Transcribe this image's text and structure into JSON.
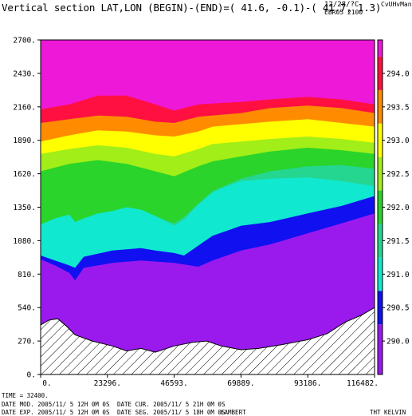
{
  "header": {
    "title": "Vertical section LAT,LON (BEGIN)-(END)=( 41.6, -0.1)-( 41.7, 1.3)",
    "date": "12/28/?C",
    "code": "EBR05 2100",
    "tag": "CvUHvMan"
  },
  "footer": {
    "time_label": "TIME = 32400.",
    "line1_a": "DATE MOD. 2005/11/ 5 12H 0M 0S",
    "line1_b": "DATE CUR. 2005/11/ 5 21H 0M 0S",
    "line2_a": "DATE EXP. 2005/11/ 5 12H 0M 0S",
    "line2_b": "DATE SEG. 2005/11/ 5 18H 0M 0S",
    "projection": "LAMBERT",
    "field": "THT KELVIN"
  },
  "chart_data": {
    "type": "contour",
    "field": "THT",
    "units": "KELVIN",
    "x_ticks": [
      "0.",
      "23296.",
      "46593.",
      "69889.",
      "93186.",
      "116482."
    ],
    "x_tick_values": [
      0,
      23296,
      46593,
      69889,
      93186,
      116482
    ],
    "y_ticks": [
      "0.",
      "270.",
      "540.",
      "810.",
      "1080.",
      "1350.",
      "1620.",
      "1890.",
      "2160.",
      "2430.",
      "2700."
    ],
    "y_tick_values": [
      0,
      270,
      540,
      810,
      1080,
      1350,
      1620,
      1890,
      2160,
      2430,
      2700
    ],
    "xlim": [
      0,
      116482
    ],
    "ylim": [
      0,
      2700
    ],
    "colorbar": {
      "ticks": [
        "290.0",
        "290.5",
        "291.0",
        "291.5",
        "292.0",
        "292.5",
        "293.0",
        "293.5",
        "294.0"
      ],
      "levels": [
        {
          "from": 289.5,
          "to": 290.25,
          "color": "#9a1aee"
        },
        {
          "from": 290.25,
          "to": 290.75,
          "color": "#1010f0"
        },
        {
          "from": 290.75,
          "to": 291.25,
          "color": "#10e8d0"
        },
        {
          "from": 291.25,
          "to": 291.75,
          "color": "#25d690"
        },
        {
          "from": 291.75,
          "to": 292.25,
          "color": "#2ad42a"
        },
        {
          "from": 292.25,
          "to": 292.75,
          "color": "#a2ee18"
        },
        {
          "from": 292.75,
          "to": 293.25,
          "color": "#ffff00"
        },
        {
          "from": 293.25,
          "to": 293.75,
          "color": "#ff8c00"
        },
        {
          "from": 293.75,
          "to": 294.25,
          "color": "#ff1040"
        },
        {
          "from": 294.25,
          "to": 294.5,
          "color": "#ee18d8"
        }
      ]
    },
    "bands_bottom_up": [
      {
        "color": "#9a1aee",
        "top": [
          [
            0,
            930
          ],
          [
            5000,
            880
          ],
          [
            10000,
            820
          ],
          [
            12000,
            760
          ],
          [
            15000,
            860
          ],
          [
            25000,
            900
          ],
          [
            35000,
            920
          ],
          [
            46593,
            900
          ],
          [
            55000,
            870
          ],
          [
            60000,
            920
          ],
          [
            69889,
            1000
          ],
          [
            80000,
            1050
          ],
          [
            93186,
            1140
          ],
          [
            105000,
            1220
          ],
          [
            116482,
            1300
          ]
        ]
      },
      {
        "color": "#1010f0",
        "top": [
          [
            0,
            960
          ],
          [
            5000,
            920
          ],
          [
            10000,
            880
          ],
          [
            12000,
            860
          ],
          [
            15000,
            950
          ],
          [
            25000,
            1000
          ],
          [
            35000,
            1020
          ],
          [
            40000,
            1000
          ],
          [
            46593,
            980
          ],
          [
            50000,
            960
          ],
          [
            55000,
            1040
          ],
          [
            60000,
            1120
          ],
          [
            65000,
            1160
          ],
          [
            69889,
            1200
          ],
          [
            80000,
            1230
          ],
          [
            93186,
            1300
          ],
          [
            105000,
            1360
          ],
          [
            116482,
            1440
          ]
        ]
      },
      {
        "color": "#10e8d0",
        "top": [
          [
            0,
            1210
          ],
          [
            5000,
            1260
          ],
          [
            10000,
            1290
          ],
          [
            12000,
            1230
          ],
          [
            15000,
            1260
          ],
          [
            20000,
            1300
          ],
          [
            25000,
            1320
          ],
          [
            30000,
            1350
          ],
          [
            35000,
            1330
          ],
          [
            40000,
            1280
          ],
          [
            46593,
            1200
          ],
          [
            50000,
            1250
          ],
          [
            55000,
            1370
          ],
          [
            60000,
            1470
          ],
          [
            65000,
            1520
          ],
          [
            69889,
            1560
          ],
          [
            80000,
            1580
          ],
          [
            93186,
            1590
          ],
          [
            105000,
            1560
          ],
          [
            116482,
            1520
          ]
        ]
      },
      {
        "color": "#25d690",
        "top": [
          [
            0,
            1200
          ],
          [
            10000,
            1280
          ],
          [
            12000,
            1230
          ],
          [
            15000,
            1250
          ],
          [
            25000,
            1310
          ],
          [
            35000,
            1320
          ],
          [
            46593,
            1220
          ],
          [
            50000,
            1270
          ],
          [
            55000,
            1380
          ],
          [
            60000,
            1480
          ],
          [
            69889,
            1580
          ],
          [
            80000,
            1640
          ],
          [
            93186,
            1680
          ],
          [
            105000,
            1690
          ],
          [
            116482,
            1660
          ]
        ]
      },
      {
        "color": "#2ad42a",
        "top": [
          [
            0,
            1640
          ],
          [
            10000,
            1700
          ],
          [
            20000,
            1730
          ],
          [
            30000,
            1700
          ],
          [
            40000,
            1640
          ],
          [
            46593,
            1600
          ],
          [
            55000,
            1680
          ],
          [
            60000,
            1720
          ],
          [
            69889,
            1760
          ],
          [
            80000,
            1800
          ],
          [
            93186,
            1830
          ],
          [
            105000,
            1810
          ],
          [
            116482,
            1780
          ]
        ]
      },
      {
        "color": "#a2ee18",
        "top": [
          [
            0,
            1780
          ],
          [
            10000,
            1820
          ],
          [
            20000,
            1850
          ],
          [
            30000,
            1830
          ],
          [
            40000,
            1780
          ],
          [
            46593,
            1760
          ],
          [
            55000,
            1820
          ],
          [
            60000,
            1860
          ],
          [
            69889,
            1880
          ],
          [
            80000,
            1900
          ],
          [
            93186,
            1920
          ],
          [
            105000,
            1900
          ],
          [
            116482,
            1870
          ]
        ]
      },
      {
        "color": "#ffff00",
        "top": [
          [
            0,
            1880
          ],
          [
            10000,
            1930
          ],
          [
            20000,
            1970
          ],
          [
            30000,
            1960
          ],
          [
            40000,
            1930
          ],
          [
            46593,
            1920
          ],
          [
            55000,
            1960
          ],
          [
            60000,
            2000
          ],
          [
            69889,
            2020
          ],
          [
            80000,
            2040
          ],
          [
            93186,
            2060
          ],
          [
            105000,
            2030
          ],
          [
            116482,
            2000
          ]
        ]
      },
      {
        "color": "#ff8c00",
        "top": [
          [
            0,
            2030
          ],
          [
            10000,
            2060
          ],
          [
            20000,
            2090
          ],
          [
            30000,
            2080
          ],
          [
            40000,
            2040
          ],
          [
            46593,
            2030
          ],
          [
            55000,
            2080
          ],
          [
            69889,
            2110
          ],
          [
            80000,
            2150
          ],
          [
            93186,
            2170
          ],
          [
            105000,
            2150
          ],
          [
            116482,
            2110
          ]
        ]
      },
      {
        "color": "#ff1040",
        "top": [
          [
            0,
            2140
          ],
          [
            10000,
            2180
          ],
          [
            20000,
            2250
          ],
          [
            30000,
            2250
          ],
          [
            40000,
            2180
          ],
          [
            46593,
            2130
          ],
          [
            55000,
            2180
          ],
          [
            69889,
            2200
          ],
          [
            80000,
            2220
          ],
          [
            93186,
            2240
          ],
          [
            105000,
            2220
          ],
          [
            116482,
            2180
          ]
        ]
      },
      {
        "color": "#ee18d8",
        "top": [
          [
            0,
            2700
          ],
          [
            116482,
            2700
          ]
        ]
      }
    ],
    "terrain": [
      [
        0,
        400
      ],
      [
        3000,
        440
      ],
      [
        6000,
        450
      ],
      [
        9000,
        390
      ],
      [
        12000,
        320
      ],
      [
        18000,
        270
      ],
      [
        25000,
        230
      ],
      [
        30000,
        190
      ],
      [
        35000,
        210
      ],
      [
        40000,
        180
      ],
      [
        46593,
        230
      ],
      [
        53000,
        260
      ],
      [
        58000,
        270
      ],
      [
        63000,
        230
      ],
      [
        69889,
        200
      ],
      [
        76000,
        210
      ],
      [
        84000,
        240
      ],
      [
        93186,
        280
      ],
      [
        100000,
        330
      ],
      [
        106000,
        420
      ],
      [
        112000,
        480
      ],
      [
        116482,
        540
      ]
    ]
  }
}
